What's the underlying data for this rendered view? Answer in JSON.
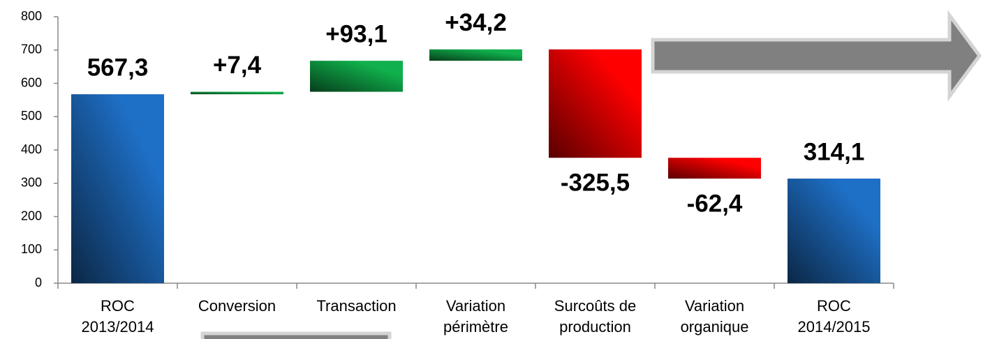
{
  "chart_data": {
    "type": "waterfall",
    "categories": [
      [
        "ROC",
        "2013/2014"
      ],
      [
        "Conversion"
      ],
      [
        "Transaction"
      ],
      [
        "Variation",
        "périmètre"
      ],
      [
        "Surcoûts de",
        "production"
      ],
      [
        "Variation",
        "organique"
      ],
      [
        "ROC",
        "2014/2015"
      ]
    ],
    "measure": [
      "absolute",
      "relative",
      "relative",
      "relative",
      "relative",
      "relative",
      "absolute"
    ],
    "values": [
      567.3,
      7.4,
      93.1,
      34.2,
      -325.5,
      -62.4,
      314.1
    ],
    "value_labels": [
      "567,3",
      "+7,4",
      "+93,1",
      "+34,2",
      "-325,5",
      "-62,4",
      "314,1"
    ],
    "colors": [
      "#1e6fc6",
      "#10b04c",
      "#10b04c",
      "#10b04c",
      "#ff0000",
      "#ff0000",
      "#1e6fc6"
    ],
    "ylim": [
      0,
      800
    ],
    "yticks": [
      0,
      100,
      200,
      300,
      400,
      500,
      600,
      700,
      800
    ],
    "grid": false
  }
}
